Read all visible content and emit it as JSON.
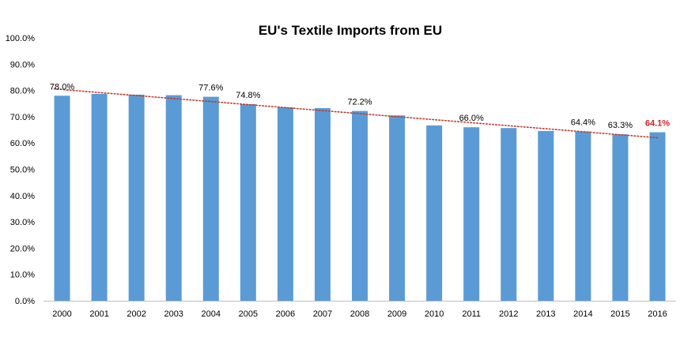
{
  "chart_data": {
    "type": "bar",
    "title": "EU's Textile Imports from EU",
    "xlabel": "",
    "ylabel": "",
    "ylim": [
      0,
      100
    ],
    "y_ticks": [
      "0.0%",
      "10.0%",
      "20.0%",
      "30.0%",
      "40.0%",
      "50.0%",
      "60.0%",
      "70.0%",
      "80.0%",
      "90.0%",
      "100.0%"
    ],
    "categories": [
      "2000",
      "2001",
      "2002",
      "2003",
      "2004",
      "2005",
      "2006",
      "2007",
      "2008",
      "2009",
      "2010",
      "2011",
      "2012",
      "2013",
      "2014",
      "2015",
      "2016"
    ],
    "values": [
      78.0,
      78.7,
      78.4,
      78.2,
      77.6,
      74.8,
      73.6,
      73.3,
      72.2,
      70.5,
      66.7,
      66.0,
      65.7,
      64.6,
      64.4,
      63.3,
      64.1
    ],
    "data_labels": [
      {
        "index": 0,
        "text": "78.0%",
        "highlight": false
      },
      {
        "index": 4,
        "text": "77.6%",
        "highlight": false
      },
      {
        "index": 5,
        "text": "74.8%",
        "highlight": false
      },
      {
        "index": 8,
        "text": "72.2%",
        "highlight": false
      },
      {
        "index": 11,
        "text": "66.0%",
        "highlight": false
      },
      {
        "index": 14,
        "text": "64.4%",
        "highlight": false
      },
      {
        "index": 15,
        "text": "63.3%",
        "highlight": false
      },
      {
        "index": 16,
        "text": "64.1%",
        "highlight": true
      }
    ],
    "trendline": {
      "type": "linear",
      "style": "dotted",
      "start_value": 80.6,
      "end_value": 62.0
    },
    "colors": {
      "bar": "#5b9bd5",
      "trendline": "#c0392b",
      "highlight_label": "#d42020",
      "axis": "#bfbfbf"
    },
    "grid": false,
    "legend": "none"
  }
}
